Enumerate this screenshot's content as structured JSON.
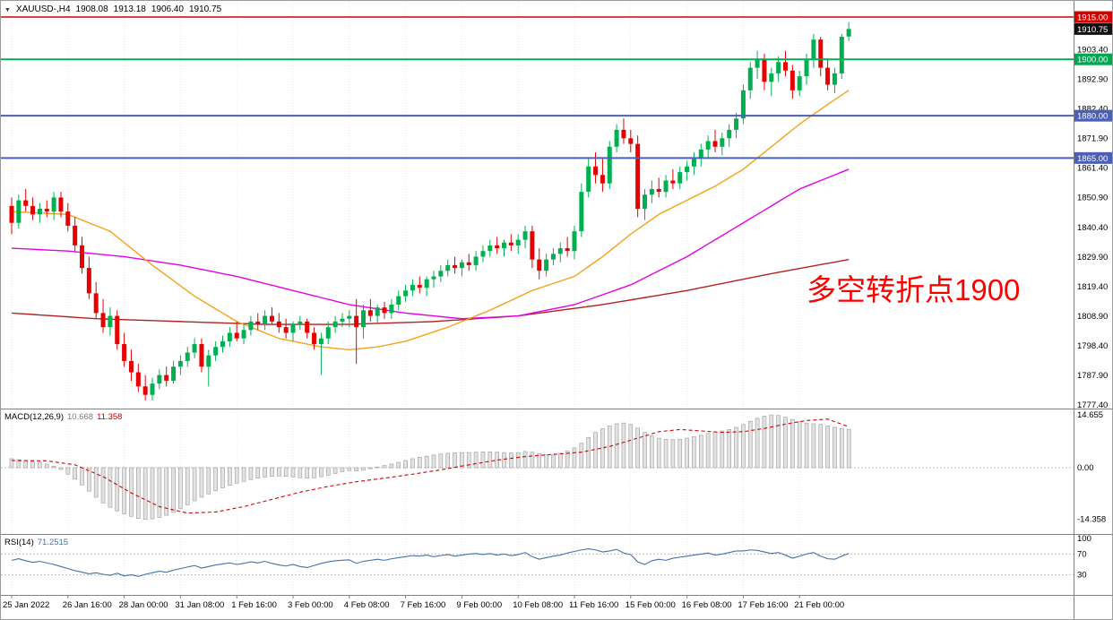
{
  "header": {
    "dropdown_icon": "▼",
    "symbol_period": "XAUUSD-,H4",
    "open": "1908.08",
    "high": "1913.18",
    "low": "1906.40",
    "close": "1910.75"
  },
  "annotation": {
    "text": "多空转折点1900",
    "color": "#ff0000"
  },
  "colors": {
    "up": "#00b050",
    "down": "#e60000",
    "ma_fast": "#f7a11a",
    "ma_mid": "#e600e6",
    "ma_slow": "#b22222",
    "hline_red": "#d40000",
    "hline_green": "#00b050",
    "hline_blue": "#4a5fb5",
    "macd_hist_fill": "#e2e2e2",
    "macd_hist_stroke": "#9a9a9a",
    "macd_signal": "#d40000",
    "rsi_line": "#4272a8",
    "grid": "#e6e6e6",
    "panel_border": "#808080",
    "axis_text": "#000000"
  },
  "price_scale": {
    "labels": [
      1903.4,
      1892.9,
      1882.4,
      1871.9,
      1861.4,
      1850.9,
      1840.4,
      1829.9,
      1819.4,
      1808.9,
      1798.4,
      1787.9,
      1777.4
    ]
  },
  "hlines": [
    {
      "price": 1915.0,
      "color_key": "hline_red",
      "width": 1.4
    },
    {
      "price": 1900.0,
      "color_key": "hline_green",
      "width": 2
    },
    {
      "price": 1880.0,
      "color_key": "hline_blue",
      "width": 2
    },
    {
      "price": 1865.0,
      "color_key": "hline_blue",
      "width": 2
    }
  ],
  "price_badges": [
    {
      "label": "1915.00",
      "price": 1915.0,
      "bg": "#d40000"
    },
    {
      "label": "1910.75",
      "price": 1910.75,
      "bg": "#111111"
    },
    {
      "label": "1900.00",
      "price": 1900.0,
      "bg": "#00a651"
    },
    {
      "label": "1880.00",
      "price": 1880.0,
      "bg": "#4a5fb5"
    },
    {
      "label": "1865.00",
      "price": 1865.0,
      "bg": "#4a5fb5"
    }
  ],
  "time_axis": {
    "labels": [
      {
        "index": 0,
        "text": "25 Jan 2022"
      },
      {
        "index": 8,
        "text": "26 Jan 16:00"
      },
      {
        "index": 16,
        "text": "28 Jan 00:00"
      },
      {
        "index": 24,
        "text": "31 Jan 08:00"
      },
      {
        "index": 32,
        "text": "1 Feb 16:00"
      },
      {
        "index": 40,
        "text": "3 Feb 00:00"
      },
      {
        "index": 48,
        "text": "4 Feb 08:00"
      },
      {
        "index": 56,
        "text": "7 Feb 16:00"
      },
      {
        "index": 64,
        "text": "9 Feb 00:00"
      },
      {
        "index": 72,
        "text": "10 Feb 08:00"
      },
      {
        "index": 80,
        "text": "11 Feb 16:00"
      },
      {
        "index": 88,
        "text": "15 Feb 00:00"
      },
      {
        "index": 96,
        "text": "16 Feb 08:00"
      },
      {
        "index": 104,
        "text": "17 Feb 16:00"
      },
      {
        "index": 112,
        "text": "21 Feb 00:00"
      }
    ]
  },
  "macd": {
    "label": "MACD(12,26,9)",
    "value_main": "10.668",
    "value_signal": "11.358",
    "scale_labels": [
      {
        "value": 14.655,
        "text": "14.655"
      },
      {
        "value": 0,
        "text": "0.00"
      },
      {
        "value": -14.358,
        "text": "-14.358"
      }
    ]
  },
  "rsi": {
    "label": "RSI(14)",
    "value": "71.2515",
    "scale_labels": [
      {
        "value": 100,
        "text": "100"
      },
      {
        "value": 70,
        "text": "70"
      },
      {
        "value": 30,
        "text": "30"
      }
    ],
    "levels": [
      70,
      30
    ]
  },
  "chart_data": {
    "type": "candlestick",
    "symbol": "XAUUSD-",
    "timeframe": "H4",
    "ylim": [
      1777.4,
      1915.0
    ],
    "candles_ohlc": [
      [
        1848,
        1851,
        1838,
        1842
      ],
      [
        1842,
        1852,
        1840,
        1850
      ],
      [
        1850,
        1854,
        1846,
        1848
      ],
      [
        1848,
        1851,
        1843,
        1845
      ],
      [
        1845,
        1849,
        1842,
        1847
      ],
      [
        1847,
        1850,
        1844,
        1846
      ],
      [
        1846,
        1853,
        1843,
        1851
      ],
      [
        1851,
        1853,
        1844,
        1846
      ],
      [
        1846,
        1849,
        1839,
        1841
      ],
      [
        1841,
        1844,
        1832,
        1834
      ],
      [
        1834,
        1837,
        1824,
        1826
      ],
      [
        1826,
        1830,
        1815,
        1817
      ],
      [
        1817,
        1821,
        1808,
        1810
      ],
      [
        1810,
        1815,
        1803,
        1805
      ],
      [
        1805,
        1812,
        1802,
        1809
      ],
      [
        1809,
        1811,
        1797,
        1799
      ],
      [
        1799,
        1803,
        1791,
        1793
      ],
      [
        1793,
        1797,
        1786,
        1789
      ],
      [
        1789,
        1792,
        1782,
        1784
      ],
      [
        1784,
        1788,
        1779,
        1781
      ],
      [
        1781,
        1787,
        1779,
        1785
      ],
      [
        1785,
        1790,
        1783,
        1788
      ],
      [
        1788,
        1791,
        1784,
        1786
      ],
      [
        1786,
        1793,
        1785,
        1791
      ],
      [
        1791,
        1795,
        1788,
        1793
      ],
      [
        1793,
        1798,
        1791,
        1796
      ],
      [
        1796,
        1801,
        1794,
        1799
      ],
      [
        1799,
        1801,
        1789,
        1791
      ],
      [
        1791,
        1797,
        1784,
        1795
      ],
      [
        1795,
        1800,
        1793,
        1798
      ],
      [
        1798,
        1802,
        1796,
        1800
      ],
      [
        1800,
        1805,
        1798,
        1803
      ],
      [
        1803,
        1807,
        1800,
        1801
      ],
      [
        1801,
        1806,
        1799,
        1804
      ],
      [
        1804,
        1809,
        1802,
        1807
      ],
      [
        1807,
        1810,
        1804,
        1806
      ],
      [
        1806,
        1811,
        1804,
        1809
      ],
      [
        1809,
        1812,
        1806,
        1807
      ],
      [
        1807,
        1810,
        1803,
        1805
      ],
      [
        1805,
        1808,
        1801,
        1803
      ],
      [
        1803,
        1807,
        1800,
        1806
      ],
      [
        1806,
        1809,
        1804,
        1807
      ],
      [
        1807,
        1808,
        1801,
        1803
      ],
      [
        1803,
        1805,
        1797,
        1799
      ],
      [
        1799,
        1803,
        1788,
        1801
      ],
      [
        1801,
        1807,
        1799,
        1805
      ],
      [
        1805,
        1809,
        1803,
        1807
      ],
      [
        1807,
        1810,
        1805,
        1808
      ],
      [
        1808,
        1811,
        1805,
        1809
      ],
      [
        1809,
        1815,
        1792,
        1805
      ],
      [
        1805,
        1813,
        1801,
        1811
      ],
      [
        1811,
        1815,
        1807,
        1809
      ],
      [
        1809,
        1813,
        1806,
        1812
      ],
      [
        1812,
        1814,
        1808,
        1810
      ],
      [
        1810,
        1815,
        1808,
        1813
      ],
      [
        1813,
        1818,
        1811,
        1816
      ],
      [
        1816,
        1820,
        1814,
        1818
      ],
      [
        1818,
        1822,
        1816,
        1820
      ],
      [
        1820,
        1823,
        1817,
        1819
      ],
      [
        1819,
        1823,
        1816,
        1822
      ],
      [
        1822,
        1825,
        1819,
        1823
      ],
      [
        1823,
        1827,
        1821,
        1825
      ],
      [
        1825,
        1829,
        1823,
        1827
      ],
      [
        1827,
        1830,
        1824,
        1826
      ],
      [
        1826,
        1829,
        1823,
        1828
      ],
      [
        1828,
        1831,
        1825,
        1827
      ],
      [
        1827,
        1832,
        1825,
        1830
      ],
      [
        1830,
        1834,
        1828,
        1832
      ],
      [
        1832,
        1836,
        1830,
        1834
      ],
      [
        1834,
        1837,
        1831,
        1833
      ],
      [
        1833,
        1836,
        1830,
        1835
      ],
      [
        1835,
        1838,
        1832,
        1834
      ],
      [
        1834,
        1838,
        1831,
        1836
      ],
      [
        1836,
        1841,
        1833,
        1839
      ],
      [
        1839,
        1841,
        1826,
        1829
      ],
      [
        1829,
        1833,
        1822,
        1825
      ],
      [
        1825,
        1831,
        1823,
        1829
      ],
      [
        1829,
        1833,
        1827,
        1831
      ],
      [
        1831,
        1835,
        1828,
        1833
      ],
      [
        1833,
        1837,
        1830,
        1832
      ],
      [
        1832,
        1841,
        1829,
        1839
      ],
      [
        1839,
        1856,
        1837,
        1853
      ],
      [
        1853,
        1865,
        1851,
        1862
      ],
      [
        1862,
        1867,
        1856,
        1859
      ],
      [
        1859,
        1865,
        1853,
        1856
      ],
      [
        1856,
        1871,
        1854,
        1869
      ],
      [
        1869,
        1877,
        1867,
        1875
      ],
      [
        1875,
        1879,
        1870,
        1872
      ],
      [
        1872,
        1875,
        1867,
        1870
      ],
      [
        1870,
        1873,
        1844,
        1847
      ],
      [
        1847,
        1854,
        1843,
        1852
      ],
      [
        1852,
        1857,
        1849,
        1854
      ],
      [
        1854,
        1858,
        1851,
        1853
      ],
      [
        1853,
        1859,
        1851,
        1857
      ],
      [
        1857,
        1861,
        1854,
        1856
      ],
      [
        1856,
        1862,
        1854,
        1860
      ],
      [
        1860,
        1864,
        1857,
        1862
      ],
      [
        1862,
        1867,
        1859,
        1865
      ],
      [
        1865,
        1870,
        1862,
        1868
      ],
      [
        1868,
        1873,
        1865,
        1871
      ],
      [
        1871,
        1875,
        1867,
        1869
      ],
      [
        1869,
        1874,
        1866,
        1872
      ],
      [
        1872,
        1877,
        1869,
        1875
      ],
      [
        1875,
        1881,
        1872,
        1879
      ],
      [
        1879,
        1891,
        1877,
        1889
      ],
      [
        1889,
        1899,
        1886,
        1897
      ],
      [
        1897,
        1903,
        1893,
        1900
      ],
      [
        1900,
        1902,
        1889,
        1892
      ],
      [
        1892,
        1897,
        1887,
        1895
      ],
      [
        1895,
        1901,
        1892,
        1899
      ],
      [
        1899,
        1903,
        1894,
        1896
      ],
      [
        1896,
        1898,
        1886,
        1889
      ],
      [
        1889,
        1896,
        1887,
        1894
      ],
      [
        1894,
        1902,
        1891,
        1900
      ],
      [
        1900,
        1909,
        1897,
        1907
      ],
      [
        1907,
        1908,
        1894,
        1897
      ],
      [
        1897,
        1900,
        1889,
        1891
      ],
      [
        1891,
        1897,
        1888,
        1895
      ],
      [
        1895,
        1909,
        1893,
        1908
      ],
      [
        1908.08,
        1913.18,
        1906.4,
        1910.75
      ]
    ],
    "ma_fast_keypoints": [
      [
        0,
        1846
      ],
      [
        8,
        1845
      ],
      [
        14,
        1839
      ],
      [
        20,
        1827
      ],
      [
        26,
        1816
      ],
      [
        32,
        1807
      ],
      [
        38,
        1801
      ],
      [
        44,
        1798
      ],
      [
        48,
        1797
      ],
      [
        52,
        1798
      ],
      [
        56,
        1800
      ],
      [
        62,
        1805
      ],
      [
        68,
        1811
      ],
      [
        74,
        1818
      ],
      [
        80,
        1823
      ],
      [
        84,
        1830
      ],
      [
        88,
        1838
      ],
      [
        92,
        1845
      ],
      [
        96,
        1850
      ],
      [
        100,
        1855
      ],
      [
        104,
        1861
      ],
      [
        108,
        1869
      ],
      [
        112,
        1877
      ],
      [
        116,
        1884
      ],
      [
        119,
        1889
      ]
    ],
    "ma_mid_keypoints": [
      [
        0,
        1833
      ],
      [
        8,
        1832
      ],
      [
        16,
        1830
      ],
      [
        24,
        1827
      ],
      [
        32,
        1823
      ],
      [
        40,
        1818
      ],
      [
        48,
        1813
      ],
      [
        56,
        1810
      ],
      [
        64,
        1808
      ],
      [
        72,
        1809
      ],
      [
        80,
        1813
      ],
      [
        88,
        1820
      ],
      [
        96,
        1830
      ],
      [
        104,
        1842
      ],
      [
        112,
        1854
      ],
      [
        119,
        1861
      ]
    ],
    "ma_slow_keypoints": [
      [
        0,
        1810
      ],
      [
        12,
        1808
      ],
      [
        24,
        1807
      ],
      [
        36,
        1806
      ],
      [
        48,
        1806
      ],
      [
        60,
        1807
      ],
      [
        72,
        1809
      ],
      [
        84,
        1813
      ],
      [
        96,
        1818
      ],
      [
        108,
        1824
      ],
      [
        119,
        1829
      ]
    ],
    "macd_main": [
      2.5,
      2.2,
      2.0,
      1.8,
      1.5,
      1.0,
      0.4,
      -0.5,
      -1.8,
      -3.2,
      -4.8,
      -6.5,
      -8.2,
      -9.8,
      -11.0,
      -12.0,
      -12.8,
      -13.5,
      -14.1,
      -14.358,
      -14.2,
      -13.8,
      -13.2,
      -12.4,
      -11.4,
      -10.3,
      -9.2,
      -8.2,
      -7.3,
      -6.4,
      -5.6,
      -4.9,
      -4.3,
      -3.8,
      -3.3,
      -2.9,
      -2.6,
      -2.4,
      -2.3,
      -2.4,
      -2.6,
      -2.8,
      -2.9,
      -2.8,
      -2.5,
      -2.1,
      -1.6,
      -1.1,
      -0.8,
      -0.9,
      -0.7,
      -0.3,
      0.2,
      0.6,
      1.0,
      1.5,
      2.0,
      2.5,
      2.9,
      3.2,
      3.5,
      3.8,
      4.0,
      4.1,
      4.2,
      4.2,
      4.3,
      4.4,
      4.4,
      4.3,
      4.2,
      4.1,
      4.2,
      4.5,
      4.3,
      3.9,
      3.6,
      3.6,
      4.0,
      4.6,
      5.5,
      6.8,
      8.4,
      9.8,
      10.8,
      11.6,
      12.2,
      12.4,
      12.0,
      11.0,
      9.8,
      8.8,
      8.2,
      7.9,
      7.8,
      7.9,
      8.2,
      8.6,
      9.0,
      9.5,
      9.9,
      10.2,
      10.6,
      11.2,
      12.0,
      12.9,
      13.7,
      14.3,
      14.655,
      14.5,
      14.0,
      13.4,
      12.8,
      12.4,
      12.2,
      12.0,
      11.6,
      11.2,
      10.9,
      10.668
    ],
    "macd_signal_keypoints": [
      [
        0,
        2.0
      ],
      [
        5,
        1.9
      ],
      [
        9,
        0.8
      ],
      [
        13,
        -2.5
      ],
      [
        17,
        -7.0
      ],
      [
        21,
        -10.8
      ],
      [
        25,
        -12.6
      ],
      [
        29,
        -12.3
      ],
      [
        33,
        -10.8
      ],
      [
        37,
        -8.8
      ],
      [
        41,
        -6.8
      ],
      [
        45,
        -5.2
      ],
      [
        49,
        -3.9
      ],
      [
        53,
        -2.9
      ],
      [
        57,
        -1.8
      ],
      [
        61,
        -0.6
      ],
      [
        65,
        0.8
      ],
      [
        69,
        2.1
      ],
      [
        73,
        3.1
      ],
      [
        77,
        3.7
      ],
      [
        81,
        4.3
      ],
      [
        85,
        5.9
      ],
      [
        89,
        8.2
      ],
      [
        92,
        10.0
      ],
      [
        95,
        10.6
      ],
      [
        98,
        10.2
      ],
      [
        101,
        9.8
      ],
      [
        104,
        10.0
      ],
      [
        107,
        10.9
      ],
      [
        110,
        12.1
      ],
      [
        113,
        13.1
      ],
      [
        116,
        13.5
      ],
      [
        119,
        11.358
      ]
    ],
    "rsi_values": [
      58,
      61,
      57,
      54,
      56,
      53,
      50,
      46,
      42,
      38,
      35,
      32,
      34,
      31,
      29,
      33,
      28,
      30,
      27,
      31,
      34,
      37,
      35,
      39,
      42,
      45,
      48,
      43,
      46,
      49,
      51,
      53,
      50,
      52,
      55,
      53,
      56,
      52,
      49,
      47,
      50,
      46,
      44,
      48,
      52,
      55,
      57,
      58,
      59,
      52,
      56,
      58,
      60,
      58,
      61,
      63,
      65,
      67,
      66,
      68,
      65,
      67,
      69,
      66,
      68,
      70,
      71,
      69,
      71,
      68,
      70,
      67,
      69,
      73,
      65,
      60,
      63,
      66,
      68,
      72,
      75,
      78,
      80,
      78,
      74,
      76,
      79,
      72,
      69,
      55,
      50,
      57,
      60,
      58,
      62,
      64,
      66,
      68,
      70,
      72,
      68,
      70,
      73,
      76,
      76,
      78,
      77,
      74,
      71,
      73,
      68,
      62,
      66,
      70,
      73,
      66,
      61,
      60,
      66,
      71.2515
    ]
  }
}
